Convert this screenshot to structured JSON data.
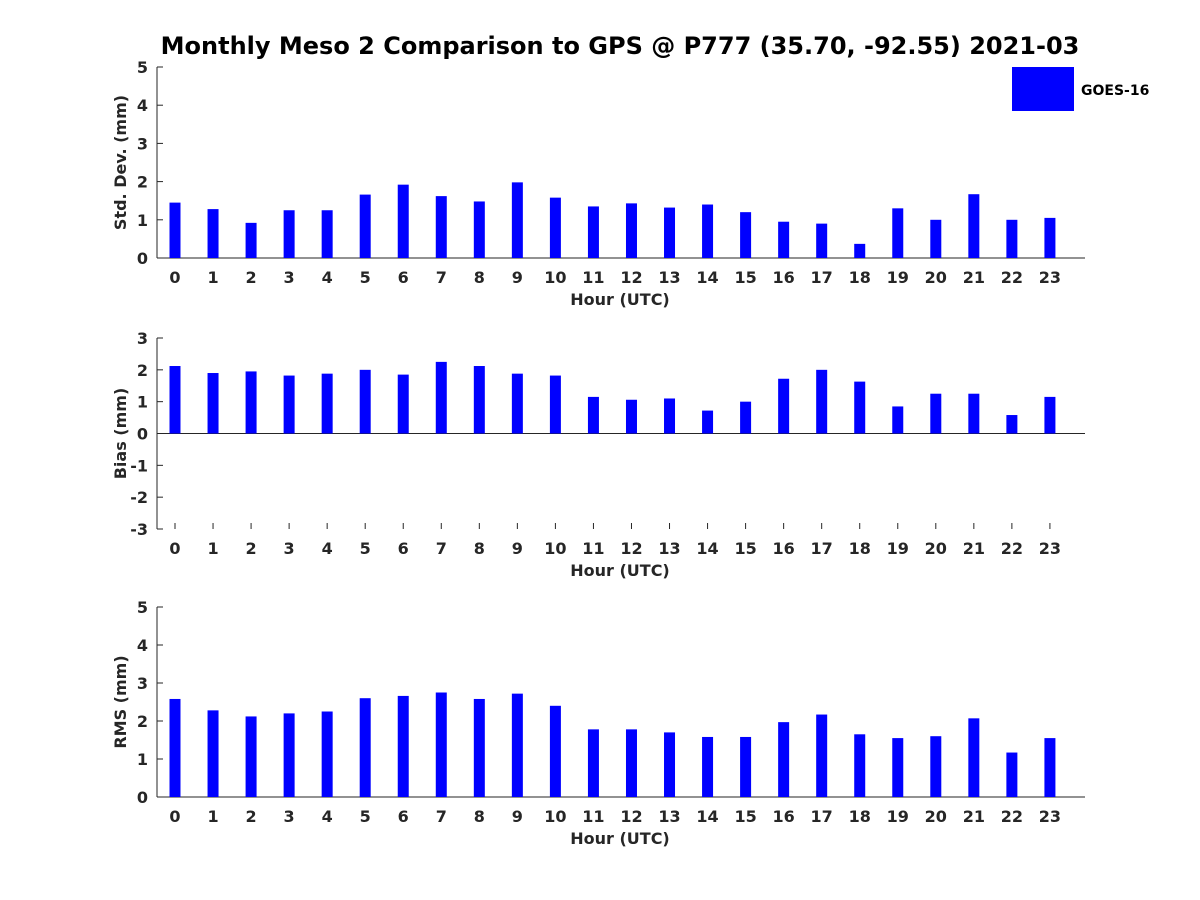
{
  "chart_data": {
    "type": "bar",
    "title": "Monthly Meso 2 Comparison to GPS @ P777 (35.70, -92.55) 2021-03",
    "bar_color": "#0000ff",
    "legend": {
      "label": "GOES-16",
      "position": "top-right"
    },
    "grid": false,
    "categories": [
      "0",
      "1",
      "2",
      "3",
      "4",
      "5",
      "6",
      "7",
      "8",
      "9",
      "10",
      "11",
      "12",
      "13",
      "14",
      "15",
      "16",
      "17",
      "18",
      "19",
      "20",
      "21",
      "22",
      "23"
    ],
    "panels": [
      {
        "key": "std",
        "xlabel": "Hour (UTC)",
        "ylabel": "Std. Dev. (mm)",
        "ylim": [
          0,
          5
        ],
        "yticks": [
          "0",
          "1",
          "2",
          "3",
          "4",
          "5"
        ],
        "series": [
          {
            "name": "GOES-16",
            "values": [
              1.45,
              1.28,
              0.92,
              1.25,
              1.25,
              1.66,
              1.92,
              1.62,
              1.48,
              1.98,
              1.58,
              1.35,
              1.43,
              1.32,
              1.4,
              1.2,
              0.95,
              0.9,
              0.37,
              1.3,
              1.0,
              1.67,
              1.0,
              1.05
            ]
          }
        ]
      },
      {
        "key": "bias",
        "xlabel": "Hour (UTC)",
        "ylabel": "Bias (mm)",
        "ylim": [
          -3,
          3
        ],
        "yticks": [
          "-3",
          "-2",
          "-1",
          "0",
          "1",
          "2",
          "3"
        ],
        "series": [
          {
            "name": "GOES-16",
            "values": [
              2.12,
              1.9,
              1.95,
              1.82,
              1.88,
              2.0,
              1.85,
              2.25,
              2.12,
              1.88,
              1.82,
              1.15,
              1.06,
              1.1,
              0.72,
              1.0,
              1.72,
              2.0,
              1.63,
              0.85,
              1.25,
              1.25,
              0.58,
              1.15
            ]
          }
        ]
      },
      {
        "key": "rms",
        "xlabel": "Hour (UTC)",
        "ylabel": "RMS (mm)",
        "ylim": [
          0,
          5
        ],
        "yticks": [
          "0",
          "1",
          "2",
          "3",
          "4",
          "5"
        ],
        "series": [
          {
            "name": "GOES-16",
            "values": [
              2.58,
              2.28,
              2.12,
              2.2,
              2.25,
              2.6,
              2.66,
              2.75,
              2.58,
              2.72,
              2.4,
              1.78,
              1.78,
              1.7,
              1.58,
              1.58,
              1.97,
              2.17,
              1.65,
              1.55,
              1.6,
              2.07,
              1.17,
              1.55
            ]
          }
        ]
      }
    ]
  }
}
